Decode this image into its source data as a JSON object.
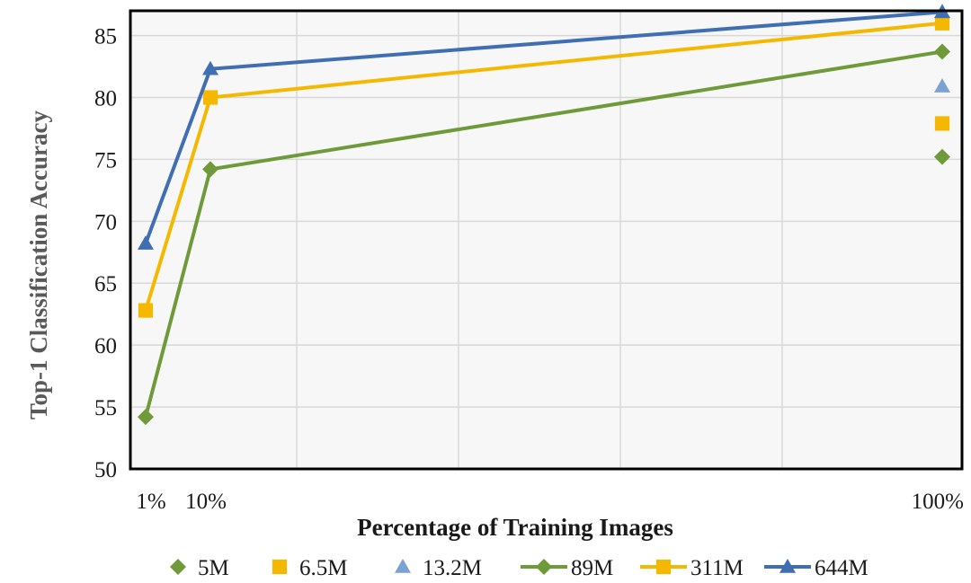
{
  "chart_data": {
    "type": "line",
    "xlabel": "Percentage of Training Images",
    "ylabel": "Top-1 Classification Accuracy",
    "ylim": [
      50,
      87
    ],
    "yticks": [
      50,
      55,
      60,
      65,
      70,
      75,
      80,
      85
    ],
    "x_tick_labels": [
      {
        "x": 1,
        "label": "1%"
      },
      {
        "x": 10,
        "label": "10%"
      },
      {
        "x": 100,
        "label": "100%"
      }
    ],
    "grid": true,
    "legend_position": "bottom",
    "series": [
      {
        "name": "5M",
        "style": "markers",
        "marker": "diamond",
        "color": "#6f9a3a",
        "points": [
          {
            "x": 100,
            "y": 75.2
          }
        ]
      },
      {
        "name": "6.5M",
        "style": "markers",
        "marker": "square",
        "color": "#f5b800",
        "points": [
          {
            "x": 100,
            "y": 77.9
          }
        ]
      },
      {
        "name": "13.2M",
        "style": "markers",
        "marker": "triangle",
        "color": "#7aa3d4",
        "points": [
          {
            "x": 100,
            "y": 80.9
          }
        ]
      },
      {
        "name": "89M",
        "style": "line",
        "marker": "diamond",
        "color": "#6f9a3a",
        "points": [
          {
            "x": 1,
            "y": 54.2
          },
          {
            "x": 10,
            "y": 74.2
          },
          {
            "x": 100,
            "y": 83.7
          }
        ]
      },
      {
        "name": "311M",
        "style": "line",
        "marker": "square",
        "color": "#f5b800",
        "points": [
          {
            "x": 1,
            "y": 62.8
          },
          {
            "x": 10,
            "y": 80.0
          },
          {
            "x": 100,
            "y": 86.0
          }
        ]
      },
      {
        "name": "644M",
        "style": "line",
        "marker": "triangle",
        "color": "#3f6eb3",
        "points": [
          {
            "x": 1,
            "y": 68.2
          },
          {
            "x": 10,
            "y": 82.3
          },
          {
            "x": 100,
            "y": 86.9
          }
        ]
      }
    ],
    "colors": {
      "plot_border": "#000000",
      "grid": "#d8d8d8",
      "axis_title": "#595959",
      "tick_text": "#1a1a1a"
    }
  }
}
